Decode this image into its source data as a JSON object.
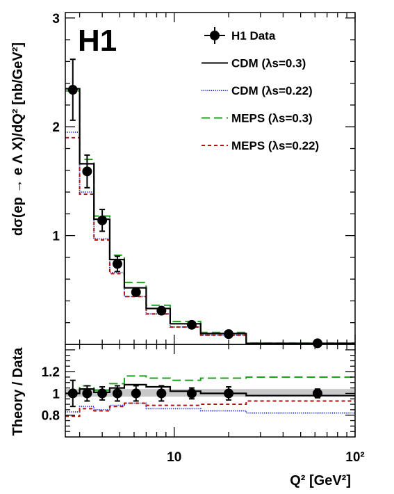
{
  "chart_data": [
    {
      "type": "line",
      "panel": "main",
      "logo": "H1",
      "ylabel": "dσ(ep → e Λ X)/dQ² [nb/GeV²]",
      "ylim": [
        0,
        3.05
      ],
      "xlim": [
        2.5,
        100
      ],
      "xscale": "log",
      "yticks_major": [
        {
          "value": 1,
          "label": "1"
        },
        {
          "value": 2,
          "label": "2"
        },
        {
          "value": 3,
          "label": "3"
        }
      ],
      "bin_edges": [
        2.5,
        3.0,
        3.6,
        4.4,
        5.3,
        7.0,
        9.5,
        14.0,
        25.0,
        100.0
      ],
      "series": [
        {
          "name": "H1 Data",
          "kind": "points",
          "x": [
            2.75,
            3.3,
            4.0,
            4.85,
            6.15,
            8.5,
            12.5,
            20.0,
            62.0
          ],
          "y": [
            2.34,
            1.59,
            1.14,
            0.74,
            0.48,
            0.31,
            0.18,
            0.095,
            0.01
          ],
          "err": [
            0.28,
            0.15,
            0.1,
            0.07,
            0.03,
            0.03,
            0.02,
            0.02,
            0.01
          ]
        },
        {
          "name": "CDM (λs=0.3)",
          "kind": "step",
          "color": "#000000",
          "dash": "solid",
          "values": [
            2.35,
            1.66,
            1.15,
            0.78,
            0.52,
            0.33,
            0.19,
            0.1,
            0.01
          ]
        },
        {
          "name": "CDM (λs=0.22)",
          "kind": "step",
          "color": "#1f2bd1",
          "dash": "dotted",
          "values": [
            1.95,
            1.4,
            0.97,
            0.66,
            0.44,
            0.28,
            0.16,
            0.085,
            0.008
          ]
        },
        {
          "name": "MEPS (λs=0.3)",
          "kind": "step",
          "color": "#1aa31a",
          "dash": "dashed",
          "values": [
            2.33,
            1.7,
            1.18,
            0.82,
            0.57,
            0.36,
            0.21,
            0.11,
            0.011
          ]
        },
        {
          "name": "MEPS (λs=0.22)",
          "kind": "step",
          "color": "#b01212",
          "dash": "short-dashed",
          "values": [
            1.9,
            1.38,
            0.96,
            0.65,
            0.44,
            0.28,
            0.16,
            0.085,
            0.008
          ]
        }
      ]
    },
    {
      "type": "line",
      "panel": "ratio",
      "ylabel": "Theory / Data",
      "xlabel": "Q² [GeV²]",
      "ylim": [
        0.6,
        1.45
      ],
      "xlim": [
        2.5,
        100
      ],
      "xscale": "log",
      "yticks_major": [
        {
          "value": 0.8,
          "label": "0.8"
        },
        {
          "value": 1.0,
          "label": "1"
        },
        {
          "value": 1.2,
          "label": "1.2"
        }
      ],
      "xticks_major": [
        {
          "value": 10,
          "label": "10"
        },
        {
          "value": 100,
          "label": "10²"
        }
      ],
      "band": {
        "low": 0.97,
        "high": 1.04
      },
      "bin_edges": [
        2.5,
        3.0,
        3.6,
        4.4,
        5.3,
        7.0,
        9.5,
        14.0,
        25.0,
        100.0
      ],
      "series": [
        {
          "name": "H1 Data",
          "kind": "points",
          "x": [
            2.75,
            3.3,
            4.0,
            4.85,
            6.15,
            8.5,
            12.5,
            20.0,
            62.0
          ],
          "y": [
            1.0,
            1.0,
            1.0,
            1.0,
            1.0,
            1.0,
            1.0,
            1.0,
            1.0
          ],
          "err": [
            0.12,
            0.07,
            0.06,
            0.07,
            0.07,
            0.07,
            0.05,
            0.06,
            0.04
          ]
        },
        {
          "name": "CDM (λs=0.3)",
          "kind": "step",
          "color": "#000000",
          "dash": "solid",
          "values": [
            1.0,
            1.04,
            1.01,
            1.05,
            1.08,
            1.06,
            1.02,
            1.0,
            0.98
          ]
        },
        {
          "name": "CDM (λs=0.22)",
          "kind": "step",
          "color": "#1f2bd1",
          "dash": "dotted",
          "values": [
            0.83,
            0.88,
            0.85,
            0.89,
            0.91,
            0.86,
            0.86,
            0.84,
            0.82
          ]
        },
        {
          "name": "MEPS (λs=0.3)",
          "kind": "step",
          "color": "#1aa31a",
          "dash": "dashed",
          "values": [
            1.0,
            1.07,
            1.03,
            1.09,
            1.16,
            1.14,
            1.12,
            1.14,
            1.15
          ]
        },
        {
          "name": "MEPS (λs=0.22)",
          "kind": "step",
          "color": "#b01212",
          "dash": "short-dashed",
          "values": [
            0.79,
            0.86,
            0.84,
            0.88,
            0.91,
            0.89,
            0.89,
            0.9,
            0.93
          ]
        }
      ]
    }
  ],
  "legend": {
    "placement": "top-right",
    "entries": [
      {
        "label": "H1 Data",
        "symbol": "point"
      },
      {
        "label": "CDM (λs=0.3)",
        "symbol": "line",
        "color": "#000000",
        "dash": "solid"
      },
      {
        "label": "CDM (λs=0.22)",
        "symbol": "line",
        "color": "#1f2bd1",
        "dash": "dotted"
      },
      {
        "label": "MEPS (λs=0.3)",
        "symbol": "line",
        "color": "#1aa31a",
        "dash": "dashed"
      },
      {
        "label": "MEPS (λs=0.22)",
        "symbol": "line",
        "color": "#b01212",
        "dash": "short-dashed"
      }
    ]
  }
}
